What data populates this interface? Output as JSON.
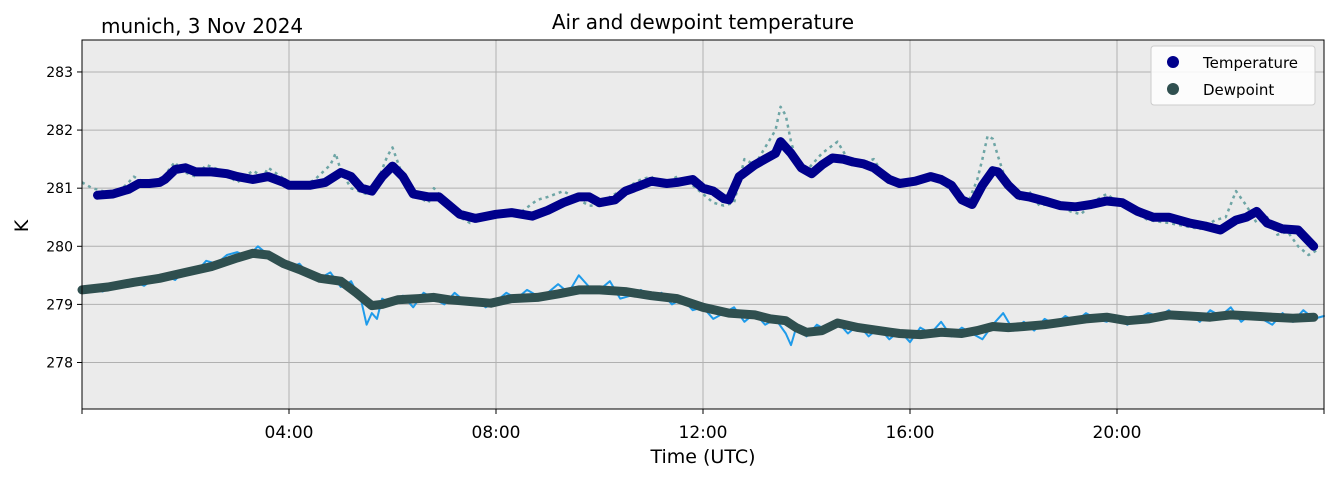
{
  "chart_data": {
    "type": "line",
    "title": "Air and dewpoint temperature",
    "subtitle": "munich, 3 Nov 2024",
    "xlabel": "Time (UTC)",
    "ylabel": "K",
    "x_unit": "hours UTC",
    "xlim": [
      0,
      24
    ],
    "ylim": [
      277.2,
      283.55
    ],
    "yticks": [
      278,
      279,
      280,
      281,
      282,
      283
    ],
    "xticks": [
      0,
      4,
      8,
      12,
      16,
      20,
      24
    ],
    "xtick_labels": [
      "",
      "04:00",
      "08:00",
      "12:00",
      "16:00",
      "20:00",
      ""
    ],
    "grid": true,
    "background": "#ebebeb",
    "legend_position": "top-right",
    "series": [
      {
        "name": "Temperature",
        "color": "#00008b",
        "style": "thick-line",
        "x": [
          0.3,
          0.6,
          0.9,
          1.1,
          1.3,
          1.5,
          1.6,
          1.8,
          2.0,
          2.2,
          2.5,
          2.8,
          3.0,
          3.3,
          3.6,
          3.9,
          4.0,
          4.4,
          4.7,
          5.0,
          5.2,
          5.4,
          5.6,
          5.8,
          6.0,
          6.2,
          6.4,
          6.7,
          6.9,
          7.1,
          7.3,
          7.6,
          8.0,
          8.3,
          8.7,
          9.0,
          9.3,
          9.6,
          9.8,
          10.0,
          10.3,
          10.5,
          10.8,
          11.0,
          11.3,
          11.5,
          11.8,
          12.0,
          12.2,
          12.4,
          12.5,
          12.7,
          13.0,
          13.2,
          13.4,
          13.5,
          13.7,
          13.9,
          14.1,
          14.3,
          14.5,
          14.7,
          14.9,
          15.1,
          15.3,
          15.6,
          15.8,
          16.1,
          16.4,
          16.6,
          16.8,
          17.0,
          17.2,
          17.4,
          17.6,
          17.7,
          17.9,
          18.1,
          18.3,
          18.6,
          18.9,
          19.2,
          19.5,
          19.8,
          20.1,
          20.4,
          20.7,
          21.0,
          21.2,
          21.4,
          21.7,
          22.0,
          22.3,
          22.5,
          22.7,
          22.9,
          23.2,
          23.5,
          23.8
        ],
        "y": [
          280.88,
          280.9,
          280.98,
          281.08,
          281.08,
          281.1,
          281.15,
          281.32,
          281.35,
          281.28,
          281.28,
          281.25,
          281.2,
          281.15,
          281.2,
          281.1,
          281.05,
          281.05,
          281.1,
          281.27,
          281.2,
          281.0,
          280.95,
          281.2,
          281.38,
          281.2,
          280.9,
          280.85,
          280.85,
          280.7,
          280.55,
          280.48,
          280.55,
          280.58,
          280.52,
          280.62,
          280.75,
          280.85,
          280.85,
          280.75,
          280.8,
          280.95,
          281.05,
          281.12,
          281.08,
          281.1,
          281.15,
          281.0,
          280.95,
          280.82,
          280.8,
          281.2,
          281.4,
          281.5,
          281.6,
          281.8,
          281.6,
          281.35,
          281.25,
          281.4,
          281.52,
          281.5,
          281.45,
          281.42,
          281.35,
          281.15,
          281.08,
          281.12,
          281.2,
          281.15,
          281.05,
          280.8,
          280.72,
          281.05,
          281.3,
          281.28,
          281.05,
          280.88,
          280.85,
          280.78,
          280.7,
          280.68,
          280.72,
          280.78,
          280.75,
          280.6,
          280.5,
          280.5,
          280.45,
          280.4,
          280.35,
          280.28,
          280.45,
          280.5,
          280.6,
          280.4,
          280.3,
          280.28,
          280.0
        ]
      },
      {
        "name": "Dewpoint",
        "color": "#2f4f4f",
        "style": "thick-line",
        "x": [
          0.0,
          0.5,
          1.0,
          1.5,
          2.0,
          2.5,
          3.0,
          3.3,
          3.6,
          3.9,
          4.2,
          4.6,
          5.0,
          5.3,
          5.6,
          5.8,
          6.1,
          6.5,
          6.8,
          7.1,
          7.5,
          7.9,
          8.3,
          8.8,
          9.2,
          9.6,
          10.0,
          10.5,
          11.0,
          11.5,
          12.0,
          12.5,
          13.0,
          13.3,
          13.6,
          13.8,
          14.0,
          14.3,
          14.6,
          15.0,
          15.4,
          15.8,
          16.2,
          16.6,
          17.0,
          17.3,
          17.6,
          17.9,
          18.2,
          18.6,
          19.0,
          19.4,
          19.8,
          20.2,
          20.6,
          21.0,
          21.4,
          21.8,
          22.2,
          22.6,
          23.0,
          23.4,
          23.8
        ],
        "y": [
          279.25,
          279.3,
          279.38,
          279.45,
          279.55,
          279.65,
          279.8,
          279.88,
          279.85,
          279.7,
          279.6,
          279.45,
          279.4,
          279.2,
          278.98,
          279.0,
          279.08,
          279.1,
          279.12,
          279.08,
          279.05,
          279.02,
          279.1,
          279.12,
          279.18,
          279.25,
          279.25,
          279.22,
          279.15,
          279.1,
          278.95,
          278.85,
          278.82,
          278.75,
          278.72,
          278.6,
          278.52,
          278.55,
          278.68,
          278.6,
          278.55,
          278.5,
          278.48,
          278.52,
          278.5,
          278.55,
          278.62,
          278.6,
          278.62,
          278.65,
          278.7,
          278.75,
          278.78,
          278.72,
          278.75,
          278.82,
          278.8,
          278.78,
          278.82,
          278.8,
          278.78,
          278.76,
          278.78
        ]
      },
      {
        "name": "",
        "color": "#6ea5a5",
        "style": "dashed-noisy",
        "x": [
          0.0,
          0.2,
          0.4,
          0.6,
          0.9,
          1.0,
          1.3,
          1.6,
          1.7,
          1.8,
          1.9,
          2.2,
          2.4,
          2.7,
          3.0,
          3.3,
          3.5,
          3.6,
          4.0,
          4.2,
          4.5,
          4.8,
          4.9,
          5.0,
          5.2,
          5.5,
          5.7,
          5.9,
          6.0,
          6.2,
          6.4,
          6.7,
          6.8,
          7.0,
          7.3,
          7.5,
          7.8,
          8.2,
          8.5,
          8.8,
          9.0,
          9.3,
          9.6,
          9.8,
          10.0,
          10.2,
          10.5,
          10.8,
          11.0,
          11.2,
          11.5,
          11.8,
          12.0,
          12.2,
          12.4,
          12.6,
          12.8,
          13.0,
          13.2,
          13.4,
          13.5,
          13.6,
          13.7,
          13.8,
          14.0,
          14.3,
          14.6,
          14.8,
          15.0,
          15.3,
          15.5,
          15.8,
          16.0,
          16.4,
          16.6,
          16.9,
          17.1,
          17.3,
          17.4,
          17.5,
          17.6,
          17.7,
          17.9,
          18.1,
          18.3,
          18.5,
          18.8,
          19.1,
          19.3,
          19.6,
          19.8,
          20.1,
          20.4,
          20.6,
          21.0,
          21.3,
          21.6,
          21.9,
          22.1,
          22.3,
          22.5,
          22.7,
          22.9,
          23.1,
          23.3,
          23.5,
          23.7,
          23.9
        ],
        "y": [
          281.1,
          281.0,
          280.95,
          280.85,
          281.1,
          281.2,
          281.05,
          281.2,
          281.35,
          281.45,
          281.3,
          281.2,
          281.4,
          281.3,
          281.1,
          281.3,
          281.2,
          281.35,
          281.1,
          281.0,
          281.15,
          281.4,
          281.6,
          281.3,
          281.0,
          280.9,
          281.1,
          281.55,
          281.7,
          281.2,
          280.9,
          280.75,
          281.0,
          280.8,
          280.5,
          280.4,
          280.5,
          280.55,
          280.6,
          280.8,
          280.85,
          280.95,
          280.8,
          280.7,
          280.7,
          280.85,
          281.0,
          281.15,
          281.2,
          281.05,
          281.2,
          281.05,
          280.9,
          280.75,
          280.7,
          280.75,
          281.5,
          281.4,
          281.7,
          282.0,
          282.4,
          282.25,
          281.8,
          281.5,
          281.3,
          281.6,
          281.8,
          281.5,
          281.4,
          281.5,
          281.2,
          281.05,
          281.1,
          281.2,
          281.1,
          280.9,
          280.7,
          281.15,
          281.5,
          281.9,
          281.85,
          281.55,
          281.0,
          280.8,
          280.95,
          280.7,
          280.75,
          280.6,
          280.55,
          280.8,
          280.9,
          280.7,
          280.55,
          280.45,
          280.4,
          280.35,
          280.3,
          280.45,
          280.5,
          280.95,
          280.7,
          280.4,
          280.5,
          280.2,
          280.25,
          280.0,
          279.85,
          279.95
        ]
      },
      {
        "name": "",
        "color": "#1f9bea",
        "style": "noisy-line",
        "x": [
          0.0,
          0.2,
          0.4,
          0.6,
          0.8,
          1.0,
          1.2,
          1.4,
          1.6,
          1.8,
          2.0,
          2.2,
          2.4,
          2.6,
          2.8,
          3.0,
          3.2,
          3.4,
          3.6,
          3.8,
          4.0,
          4.2,
          4.4,
          4.6,
          4.8,
          5.0,
          5.2,
          5.4,
          5.5,
          5.6,
          5.7,
          5.8,
          6.0,
          6.2,
          6.4,
          6.6,
          6.8,
          7.0,
          7.2,
          7.4,
          7.6,
          7.8,
          8.0,
          8.2,
          8.4,
          8.6,
          8.8,
          9.0,
          9.2,
          9.4,
          9.6,
          9.8,
          10.0,
          10.2,
          10.4,
          10.6,
          10.8,
          11.0,
          11.2,
          11.4,
          11.6,
          11.8,
          12.0,
          12.2,
          12.4,
          12.6,
          12.8,
          13.0,
          13.2,
          13.4,
          13.6,
          13.7,
          13.8,
          14.0,
          14.2,
          14.4,
          14.6,
          14.8,
          15.0,
          15.2,
          15.4,
          15.6,
          15.8,
          16.0,
          16.2,
          16.4,
          16.6,
          16.8,
          17.0,
          17.2,
          17.4,
          17.6,
          17.8,
          18.0,
          18.2,
          18.4,
          18.6,
          18.8,
          19.0,
          19.2,
          19.4,
          19.6,
          19.8,
          20.0,
          20.2,
          20.4,
          20.6,
          20.8,
          21.0,
          21.2,
          21.4,
          21.6,
          21.8,
          22.0,
          22.2,
          22.4,
          22.6,
          22.8,
          23.0,
          23.2,
          23.4,
          23.6,
          23.8,
          24.0
        ],
        "y": [
          279.2,
          279.28,
          279.22,
          279.35,
          279.3,
          279.4,
          279.32,
          279.45,
          279.5,
          279.42,
          279.6,
          279.55,
          279.75,
          279.7,
          279.85,
          279.9,
          279.82,
          280.0,
          279.85,
          279.75,
          279.62,
          279.7,
          279.5,
          279.45,
          279.55,
          279.3,
          279.4,
          279.05,
          278.65,
          278.85,
          278.75,
          279.1,
          279.0,
          279.15,
          278.95,
          279.2,
          279.1,
          279.0,
          279.2,
          279.05,
          279.1,
          278.95,
          279.05,
          279.2,
          279.1,
          279.25,
          279.15,
          279.2,
          279.35,
          279.2,
          279.5,
          279.3,
          279.25,
          279.4,
          279.1,
          279.15,
          279.25,
          279.1,
          279.2,
          279.0,
          279.1,
          278.9,
          278.95,
          278.75,
          278.85,
          278.95,
          278.7,
          278.85,
          278.65,
          278.75,
          278.5,
          278.3,
          278.6,
          278.45,
          278.65,
          278.55,
          278.7,
          278.5,
          278.65,
          278.45,
          278.6,
          278.4,
          278.55,
          278.35,
          278.6,
          278.5,
          278.7,
          278.45,
          278.6,
          278.5,
          278.4,
          278.65,
          278.85,
          278.55,
          278.7,
          278.55,
          278.75,
          278.65,
          278.8,
          278.7,
          278.85,
          278.75,
          278.7,
          278.8,
          278.65,
          278.75,
          278.85,
          278.8,
          278.9,
          278.75,
          278.85,
          278.7,
          278.9,
          278.8,
          278.95,
          278.7,
          278.85,
          278.75,
          278.65,
          278.85,
          278.7,
          278.9,
          278.75,
          278.8
        ]
      }
    ]
  }
}
